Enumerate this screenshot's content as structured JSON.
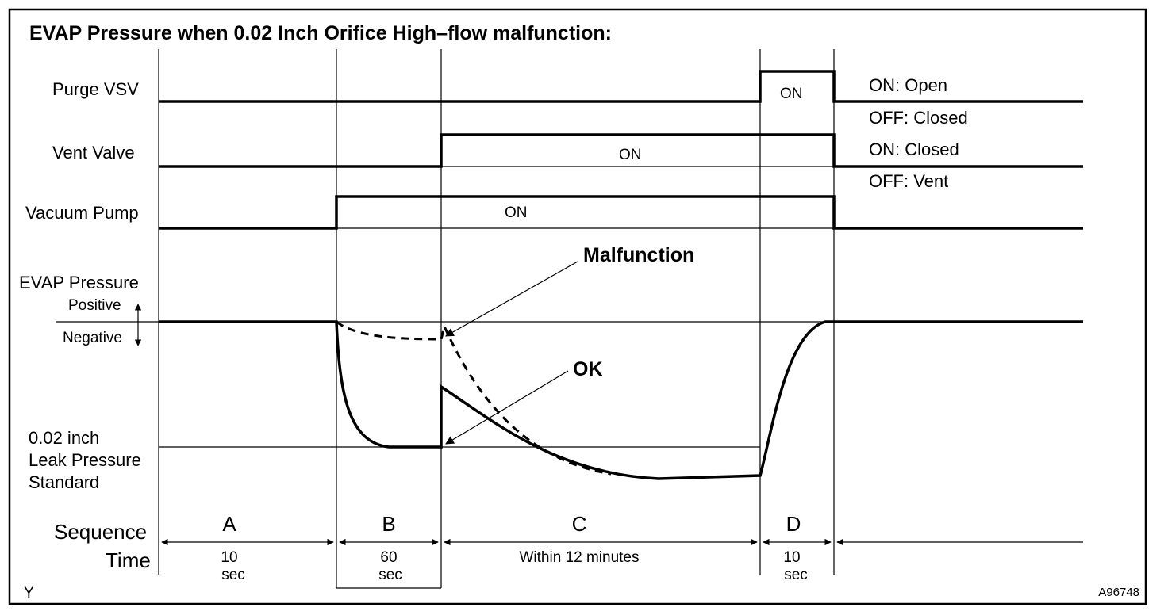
{
  "title": "EVAP Pressure when 0.02 Inch Orifice High–flow malfunction:",
  "signals": {
    "purge_vsv": "Purge VSV",
    "vent_valve": "Vent Valve",
    "vacuum_pump": "Vacuum Pump",
    "evap_pressure": "EVAP Pressure",
    "positive": "Positive",
    "negative": "Negative",
    "leak_line1": "0.02 inch",
    "leak_line2": "Leak Pressure",
    "leak_line3": "Standard"
  },
  "state_labels": {
    "purge_on": "ON",
    "vent_on": "ON",
    "pump_on": "ON"
  },
  "legend": {
    "purge_on": "ON: Open",
    "purge_off": "OFF: Closed",
    "vent_on": "ON: Closed",
    "vent_off": "OFF: Vent"
  },
  "annotations": {
    "malfunction": "Malfunction",
    "ok": "OK"
  },
  "sequence": {
    "label": "Sequence",
    "time_label": "Time",
    "phases": [
      {
        "name": "A",
        "time1": "10",
        "time2": "sec"
      },
      {
        "name": "B",
        "time1": "60",
        "time2": "sec"
      },
      {
        "name": "C",
        "time1": "Within 12 minutes",
        "time2": ""
      },
      {
        "name": "D",
        "time1": "10",
        "time2": "sec"
      }
    ]
  },
  "footer": {
    "left": "Y",
    "right": "A96748"
  }
}
